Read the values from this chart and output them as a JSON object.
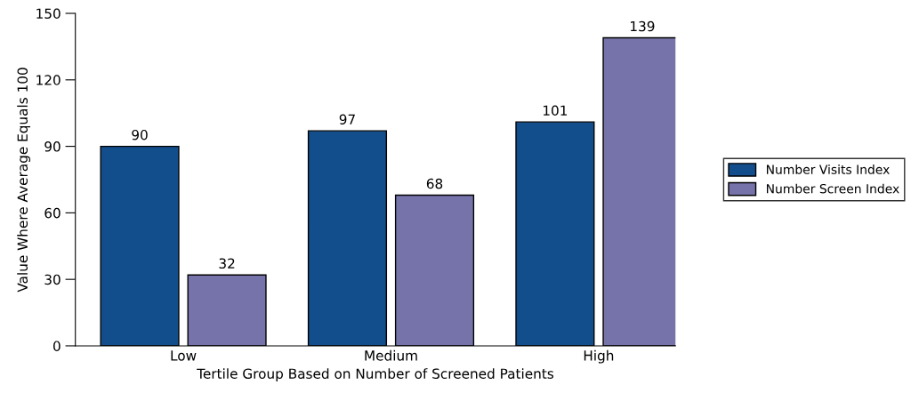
{
  "chart_data": {
    "type": "bar",
    "xlabel": "Tertile Group Based on Number of Screened Patients",
    "ylabel": "Value Where Average Equals 100",
    "categories": [
      "Low",
      "Medium",
      "High"
    ],
    "series": [
      {
        "name": "Number Visits Index",
        "color": "#134e8c",
        "values": [
          90,
          97,
          101
        ]
      },
      {
        "name": "Number Screen Index",
        "color": "#7673aa",
        "values": [
          32,
          68,
          139
        ]
      }
    ],
    "ylim": [
      0,
      150
    ],
    "yticks": [
      0,
      30,
      60,
      90,
      120,
      150
    ],
    "data_labels": true,
    "grid": false,
    "legend": "right"
  }
}
